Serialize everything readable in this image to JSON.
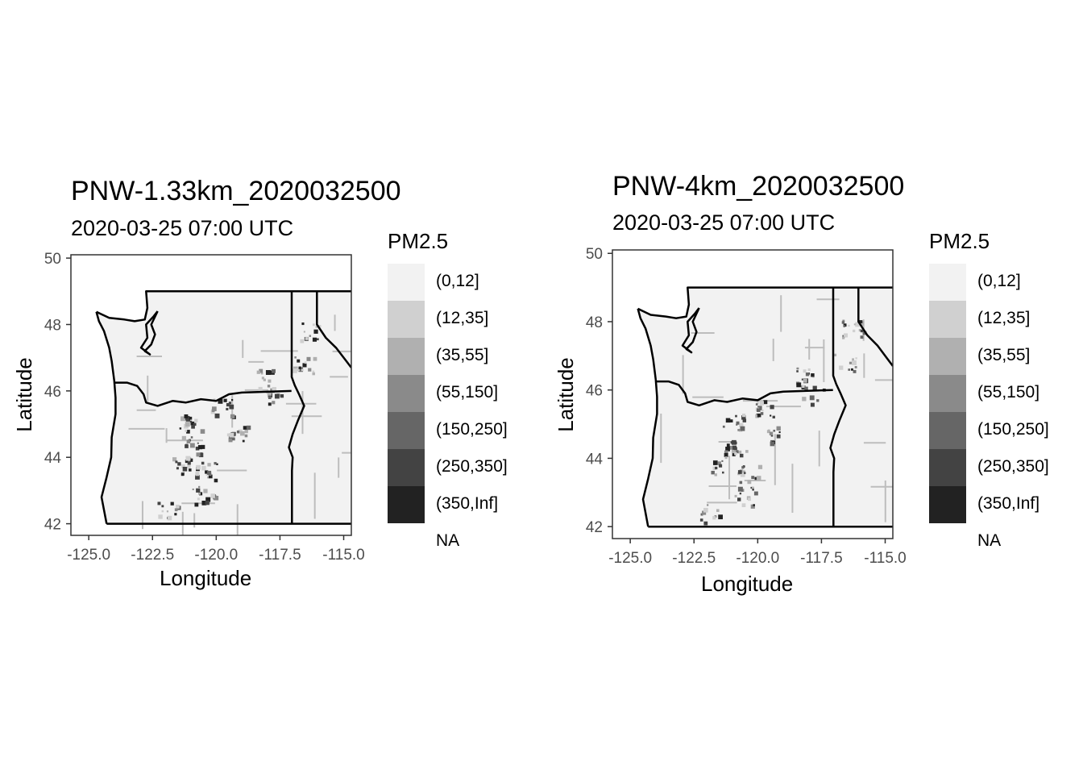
{
  "panels": [
    {
      "title": "PNW-1.33km_2020032500",
      "subtitle": "2020-03-25 07:00 UTC",
      "x_axis_label": "Longitude",
      "y_axis_label": "Latitude",
      "x_ticks": [
        "-125.0",
        "-122.5",
        "-120.0",
        "-117.5",
        "-115.0"
      ],
      "y_ticks": [
        "42",
        "44",
        "46",
        "48",
        "50"
      ],
      "x_range": [
        -125.7,
        -114.7
      ],
      "y_range": [
        41.65,
        50.1
      ]
    },
    {
      "title": "PNW-4km_2020032500",
      "subtitle": "2020-03-25 07:00 UTC",
      "x_axis_label": "Longitude",
      "y_axis_label": "Latitude",
      "x_ticks": [
        "-125.0",
        "-122.5",
        "-120.0",
        "-117.5",
        "-115.0"
      ],
      "y_ticks": [
        "42",
        "44",
        "46",
        "48",
        "50"
      ],
      "x_range": [
        -125.7,
        -114.7
      ],
      "y_range": [
        41.65,
        50.1
      ]
    }
  ],
  "legend": {
    "title": "PM2.5",
    "items": [
      {
        "label": "(0,12]",
        "color": "#f2f2f2"
      },
      {
        "label": "(12,35]",
        "color": "#d0d0d0"
      },
      {
        "label": "(35,55]",
        "color": "#b0b0b0"
      },
      {
        "label": "(55,150]",
        "color": "#8a8a8a"
      },
      {
        "label": "(150,250]",
        "color": "#666666"
      },
      {
        "label": "(250,350]",
        "color": "#434343"
      },
      {
        "label": "(350,Inf]",
        "color": "#222222"
      }
    ],
    "na_label": "NA"
  },
  "colors": {
    "state_border": "#000000",
    "county_border": "#bdbdbd",
    "domain_fill": "#f2f2f2"
  }
}
